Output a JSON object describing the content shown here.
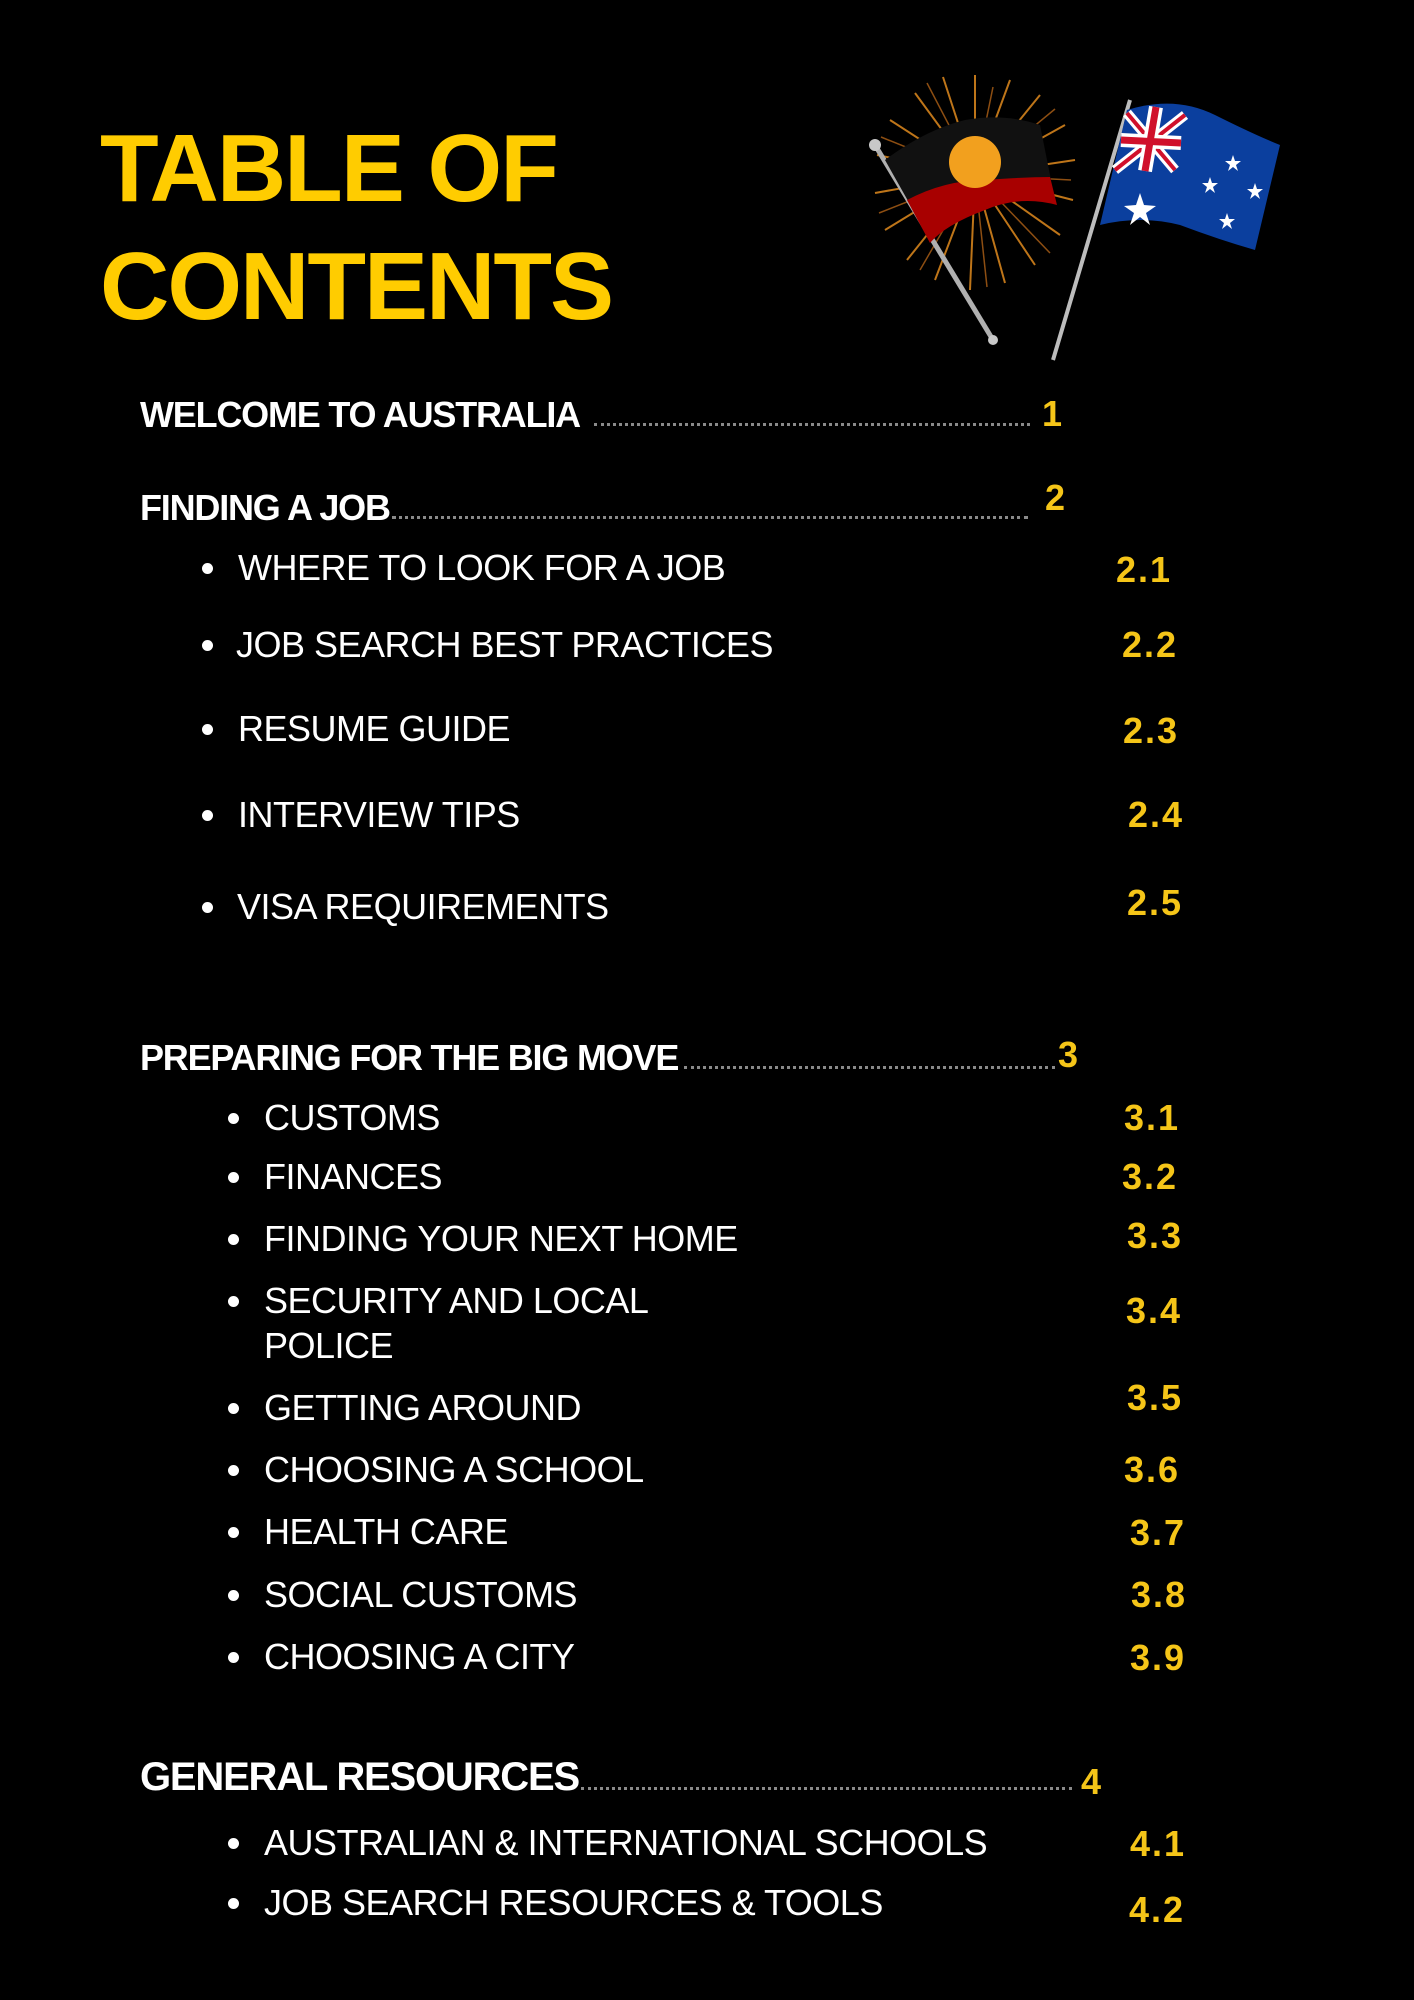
{
  "title": {
    "line1": "TABLE OF",
    "line2": "CONTENTS"
  },
  "colors": {
    "background": "#000000",
    "title": "#FFCC00",
    "number": "#F5C518",
    "text": "#FFFFFF"
  },
  "decoration": {
    "left_flag": "aboriginal-flag-icon",
    "right_flag": "australian-flag-icon"
  },
  "sections": [
    {
      "title": "WELCOME TO AUSTRALIA",
      "number": "1",
      "items": []
    },
    {
      "title": "FINDING A JOB",
      "number": "2",
      "items": [
        {
          "label": "WHERE TO LOOK FOR A JOB",
          "number": "2.1"
        },
        {
          "label": "JOB SEARCH BEST PRACTICES",
          "number": "2.2"
        },
        {
          "label": "RESUME GUIDE",
          "number": "2.3"
        },
        {
          "label": "INTERVIEW TIPS",
          "number": "2.4"
        },
        {
          "label": "VISA REQUIREMENTS",
          "number": "2.5"
        }
      ]
    },
    {
      "title": "PREPARING FOR THE BIG MOVE",
      "number": "3",
      "items": [
        {
          "label": "CUSTOMS",
          "number": "3.1"
        },
        {
          "label": "FINANCES",
          "number": "3.2"
        },
        {
          "label": "FINDING YOUR NEXT HOME",
          "number": "3.3"
        },
        {
          "label": "SECURITY AND LOCAL",
          "label_line2": "POLICE",
          "number": "3.4"
        },
        {
          "label": "GETTING AROUND",
          "number": "3.5"
        },
        {
          "label": "CHOOSING A SCHOOL",
          "number": "3.6"
        },
        {
          "label": "HEALTH CARE",
          "number": "3.7"
        },
        {
          "label": "SOCIAL CUSTOMS",
          "number": "3.8"
        },
        {
          "label": "CHOOSING A CITY",
          "number": "3.9"
        }
      ]
    },
    {
      "title": "GENERAL RESOURCES",
      "number": "4",
      "items": [
        {
          "label": "AUSTRALIAN & INTERNATIONAL SCHOOLS",
          "number": "4.1"
        },
        {
          "label": "JOB SEARCH RESOURCES & TOOLS",
          "number": "4.2"
        }
      ]
    }
  ]
}
